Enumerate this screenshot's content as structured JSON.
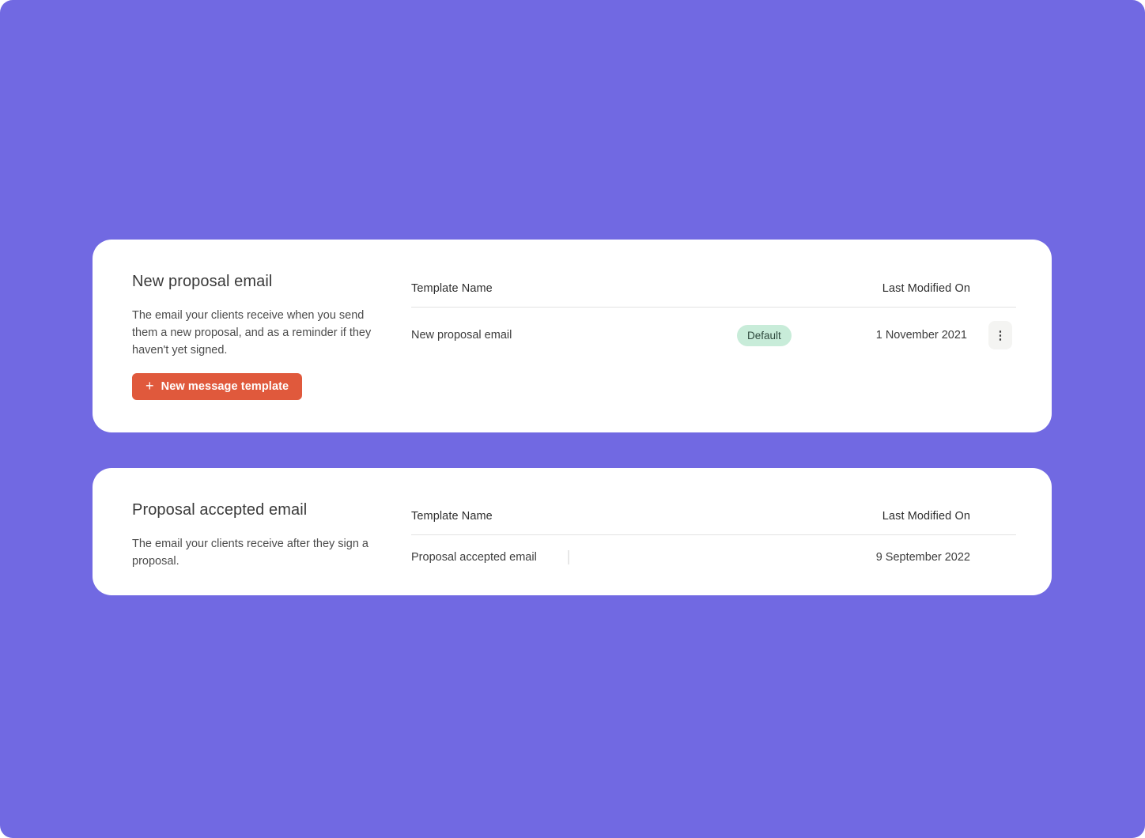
{
  "colors": {
    "background": "#7169e2",
    "card": "#ffffff",
    "primary_button": "#e0593c",
    "badge_background": "#c8ecd9",
    "badge_text": "#2f4a3e",
    "divider": "#e3e3e3"
  },
  "icons": {
    "plus": "+",
    "kebab": "⋮"
  },
  "sections": [
    {
      "title": "New proposal email",
      "description": "The email your clients receive when you send them a new proposal, and as a reminder if they haven't yet signed.",
      "action_label": "New message template",
      "table": {
        "columns": [
          "Template Name",
          "Last Modified On"
        ],
        "rows": [
          {
            "name": "New proposal email",
            "badge": "Default",
            "modified": "1 November 2021"
          }
        ]
      }
    },
    {
      "title": "Proposal accepted email",
      "description": "The email your clients receive after they sign a proposal.",
      "table": {
        "columns": [
          "Template Name",
          "Last Modified On"
        ],
        "rows": [
          {
            "name": "Proposal accepted email",
            "modified": "9 September 2022"
          }
        ]
      }
    }
  ]
}
